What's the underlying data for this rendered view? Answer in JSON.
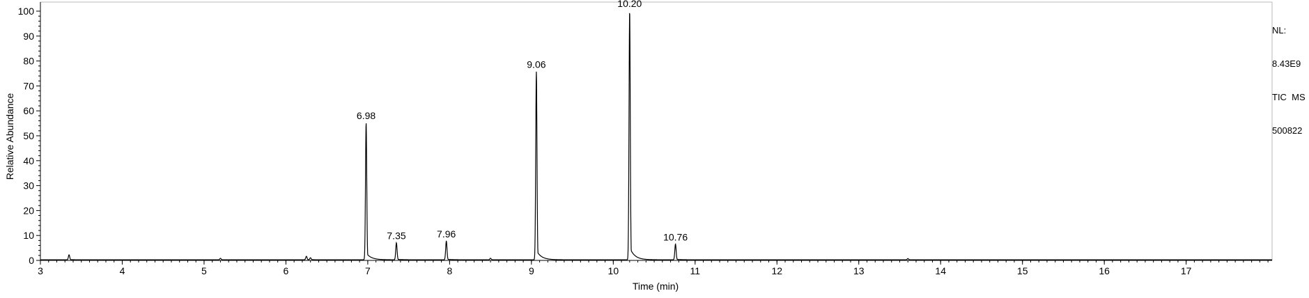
{
  "chart_data": {
    "type": "line",
    "title": "",
    "xlabel": "Time (min)",
    "ylabel": "Relative Abundance",
    "xlim": [
      3,
      18.05
    ],
    "ylim": [
      0,
      100
    ],
    "x_ticks": [
      "3",
      "4",
      "5",
      "6",
      "7",
      "8",
      "9",
      "10",
      "11",
      "12",
      "13",
      "14",
      "15",
      "16",
      "17"
    ],
    "y_ticks": [
      "0",
      "10",
      "20",
      "30",
      "40",
      "50",
      "60",
      "70",
      "80",
      "90",
      "100"
    ],
    "grid": false,
    "peaks": [
      {
        "rt": 3.35,
        "height": 2.0,
        "label": ""
      },
      {
        "rt": 5.2,
        "height": 0.6,
        "label": ""
      },
      {
        "rt": 6.25,
        "height": 1.4,
        "label": ""
      },
      {
        "rt": 6.3,
        "height": 0.8,
        "label": ""
      },
      {
        "rt": 6.98,
        "height": 55,
        "label": "6.98"
      },
      {
        "rt": 7.35,
        "height": 6.8,
        "label": "7.35"
      },
      {
        "rt": 7.96,
        "height": 7.5,
        "label": "7.96"
      },
      {
        "rt": 8.5,
        "height": 0.6,
        "label": ""
      },
      {
        "rt": 9.06,
        "height": 75.5,
        "label": "9.06"
      },
      {
        "rt": 10.2,
        "height": 100,
        "label": "10.20"
      },
      {
        "rt": 10.76,
        "height": 6.3,
        "label": "10.76"
      },
      {
        "rt": 13.6,
        "height": 0.5,
        "label": ""
      }
    ]
  },
  "side_info": {
    "line1": "NL:",
    "line2": "8.43E9",
    "line3": "TIC  MS",
    "line4": "500822"
  }
}
